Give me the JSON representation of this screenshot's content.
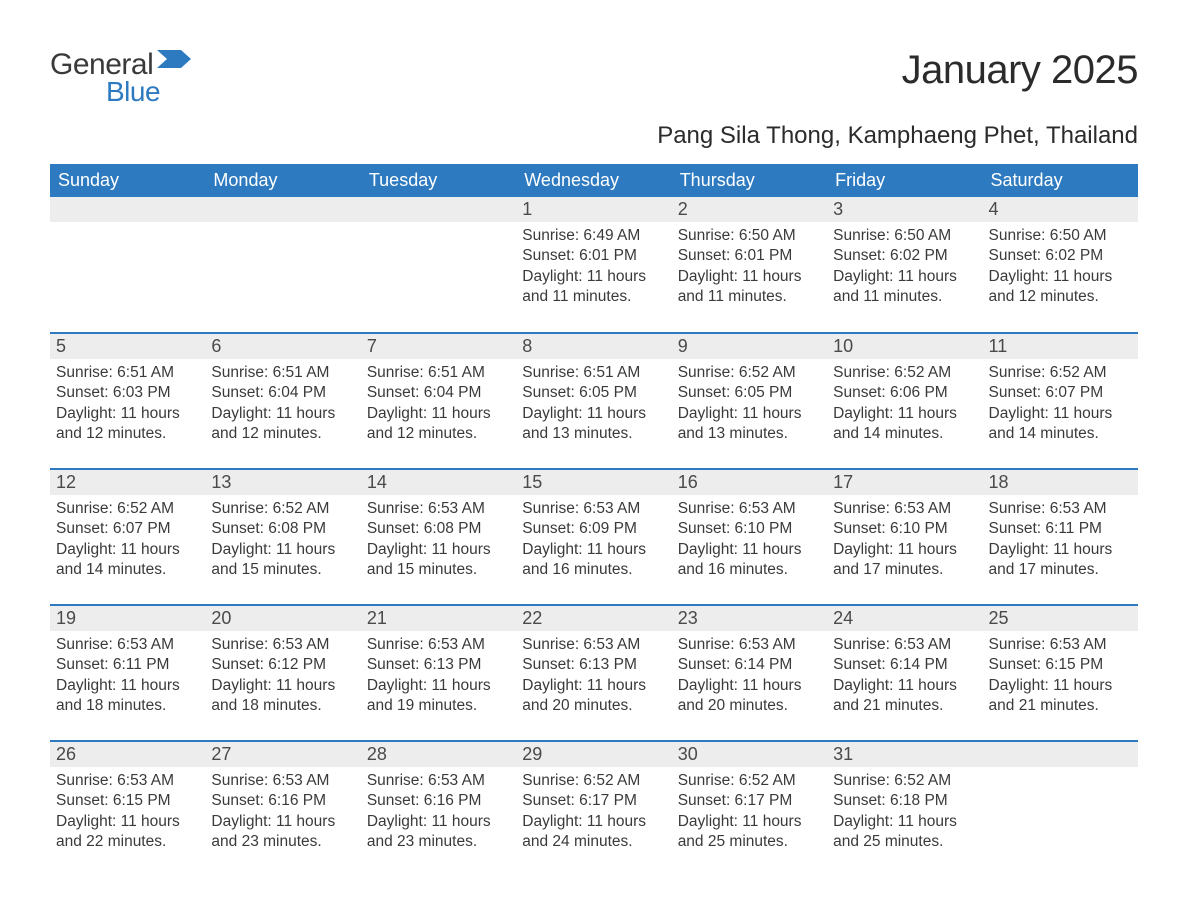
{
  "logo": {
    "word1": "General",
    "word2": "Blue"
  },
  "title": "January 2025",
  "location": "Pang Sila Thong, Kamphaeng Phet, Thailand",
  "colors": {
    "header_bg": "#2d7ac0",
    "header_text": "#ffffff",
    "daynum_bg": "#ededed",
    "border": "#2d7ac0",
    "body_text": "#3a3a3a",
    "logo_blue": "#2d7ac0"
  },
  "day_headers": [
    "Sunday",
    "Monday",
    "Tuesday",
    "Wednesday",
    "Thursday",
    "Friday",
    "Saturday"
  ],
  "weeks": [
    [
      null,
      null,
      null,
      {
        "n": "1",
        "sr": "Sunrise: 6:49 AM",
        "ss": "Sunset: 6:01 PM",
        "d1": "Daylight: 11 hours",
        "d2": "and 11 minutes."
      },
      {
        "n": "2",
        "sr": "Sunrise: 6:50 AM",
        "ss": "Sunset: 6:01 PM",
        "d1": "Daylight: 11 hours",
        "d2": "and 11 minutes."
      },
      {
        "n": "3",
        "sr": "Sunrise: 6:50 AM",
        "ss": "Sunset: 6:02 PM",
        "d1": "Daylight: 11 hours",
        "d2": "and 11 minutes."
      },
      {
        "n": "4",
        "sr": "Sunrise: 6:50 AM",
        "ss": "Sunset: 6:02 PM",
        "d1": "Daylight: 11 hours",
        "d2": "and 12 minutes."
      }
    ],
    [
      {
        "n": "5",
        "sr": "Sunrise: 6:51 AM",
        "ss": "Sunset: 6:03 PM",
        "d1": "Daylight: 11 hours",
        "d2": "and 12 minutes."
      },
      {
        "n": "6",
        "sr": "Sunrise: 6:51 AM",
        "ss": "Sunset: 6:04 PM",
        "d1": "Daylight: 11 hours",
        "d2": "and 12 minutes."
      },
      {
        "n": "7",
        "sr": "Sunrise: 6:51 AM",
        "ss": "Sunset: 6:04 PM",
        "d1": "Daylight: 11 hours",
        "d2": "and 12 minutes."
      },
      {
        "n": "8",
        "sr": "Sunrise: 6:51 AM",
        "ss": "Sunset: 6:05 PM",
        "d1": "Daylight: 11 hours",
        "d2": "and 13 minutes."
      },
      {
        "n": "9",
        "sr": "Sunrise: 6:52 AM",
        "ss": "Sunset: 6:05 PM",
        "d1": "Daylight: 11 hours",
        "d2": "and 13 minutes."
      },
      {
        "n": "10",
        "sr": "Sunrise: 6:52 AM",
        "ss": "Sunset: 6:06 PM",
        "d1": "Daylight: 11 hours",
        "d2": "and 14 minutes."
      },
      {
        "n": "11",
        "sr": "Sunrise: 6:52 AM",
        "ss": "Sunset: 6:07 PM",
        "d1": "Daylight: 11 hours",
        "d2": "and 14 minutes."
      }
    ],
    [
      {
        "n": "12",
        "sr": "Sunrise: 6:52 AM",
        "ss": "Sunset: 6:07 PM",
        "d1": "Daylight: 11 hours",
        "d2": "and 14 minutes."
      },
      {
        "n": "13",
        "sr": "Sunrise: 6:52 AM",
        "ss": "Sunset: 6:08 PM",
        "d1": "Daylight: 11 hours",
        "d2": "and 15 minutes."
      },
      {
        "n": "14",
        "sr": "Sunrise: 6:53 AM",
        "ss": "Sunset: 6:08 PM",
        "d1": "Daylight: 11 hours",
        "d2": "and 15 minutes."
      },
      {
        "n": "15",
        "sr": "Sunrise: 6:53 AM",
        "ss": "Sunset: 6:09 PM",
        "d1": "Daylight: 11 hours",
        "d2": "and 16 minutes."
      },
      {
        "n": "16",
        "sr": "Sunrise: 6:53 AM",
        "ss": "Sunset: 6:10 PM",
        "d1": "Daylight: 11 hours",
        "d2": "and 16 minutes."
      },
      {
        "n": "17",
        "sr": "Sunrise: 6:53 AM",
        "ss": "Sunset: 6:10 PM",
        "d1": "Daylight: 11 hours",
        "d2": "and 17 minutes."
      },
      {
        "n": "18",
        "sr": "Sunrise: 6:53 AM",
        "ss": "Sunset: 6:11 PM",
        "d1": "Daylight: 11 hours",
        "d2": "and 17 minutes."
      }
    ],
    [
      {
        "n": "19",
        "sr": "Sunrise: 6:53 AM",
        "ss": "Sunset: 6:11 PM",
        "d1": "Daylight: 11 hours",
        "d2": "and 18 minutes."
      },
      {
        "n": "20",
        "sr": "Sunrise: 6:53 AM",
        "ss": "Sunset: 6:12 PM",
        "d1": "Daylight: 11 hours",
        "d2": "and 18 minutes."
      },
      {
        "n": "21",
        "sr": "Sunrise: 6:53 AM",
        "ss": "Sunset: 6:13 PM",
        "d1": "Daylight: 11 hours",
        "d2": "and 19 minutes."
      },
      {
        "n": "22",
        "sr": "Sunrise: 6:53 AM",
        "ss": "Sunset: 6:13 PM",
        "d1": "Daylight: 11 hours",
        "d2": "and 20 minutes."
      },
      {
        "n": "23",
        "sr": "Sunrise: 6:53 AM",
        "ss": "Sunset: 6:14 PM",
        "d1": "Daylight: 11 hours",
        "d2": "and 20 minutes."
      },
      {
        "n": "24",
        "sr": "Sunrise: 6:53 AM",
        "ss": "Sunset: 6:14 PM",
        "d1": "Daylight: 11 hours",
        "d2": "and 21 minutes."
      },
      {
        "n": "25",
        "sr": "Sunrise: 6:53 AM",
        "ss": "Sunset: 6:15 PM",
        "d1": "Daylight: 11 hours",
        "d2": "and 21 minutes."
      }
    ],
    [
      {
        "n": "26",
        "sr": "Sunrise: 6:53 AM",
        "ss": "Sunset: 6:15 PM",
        "d1": "Daylight: 11 hours",
        "d2": "and 22 minutes."
      },
      {
        "n": "27",
        "sr": "Sunrise: 6:53 AM",
        "ss": "Sunset: 6:16 PM",
        "d1": "Daylight: 11 hours",
        "d2": "and 23 minutes."
      },
      {
        "n": "28",
        "sr": "Sunrise: 6:53 AM",
        "ss": "Sunset: 6:16 PM",
        "d1": "Daylight: 11 hours",
        "d2": "and 23 minutes."
      },
      {
        "n": "29",
        "sr": "Sunrise: 6:52 AM",
        "ss": "Sunset: 6:17 PM",
        "d1": "Daylight: 11 hours",
        "d2": "and 24 minutes."
      },
      {
        "n": "30",
        "sr": "Sunrise: 6:52 AM",
        "ss": "Sunset: 6:17 PM",
        "d1": "Daylight: 11 hours",
        "d2": "and 25 minutes."
      },
      {
        "n": "31",
        "sr": "Sunrise: 6:52 AM",
        "ss": "Sunset: 6:18 PM",
        "d1": "Daylight: 11 hours",
        "d2": "and 25 minutes."
      },
      null
    ]
  ]
}
